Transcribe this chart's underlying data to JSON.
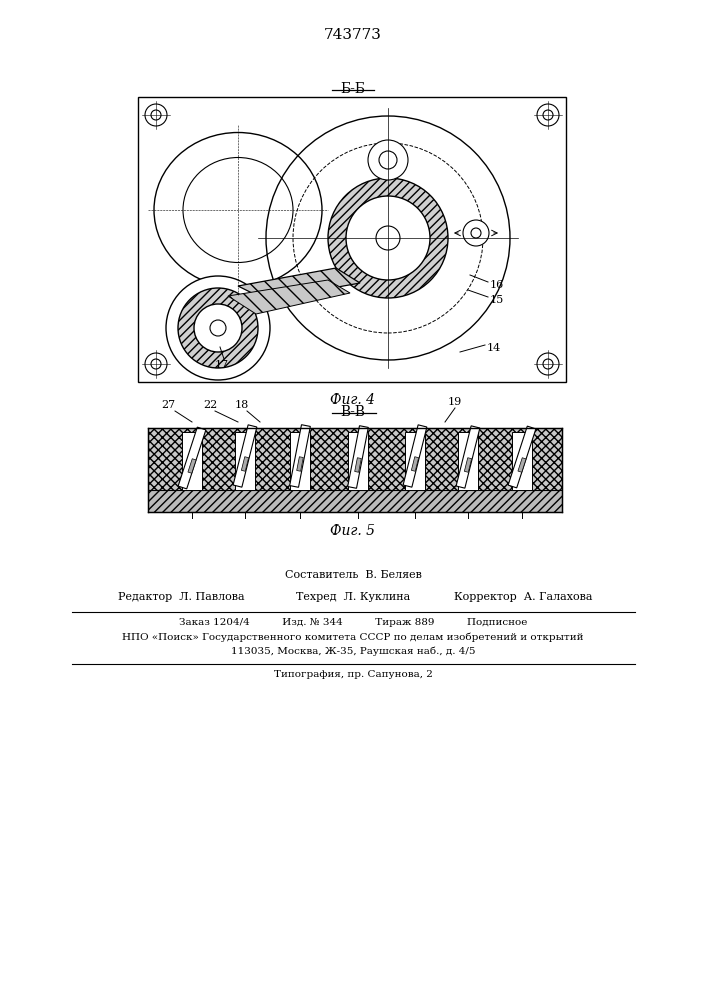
{
  "patent_number": "743773",
  "fig4_label": "Б-Б",
  "fig4_caption": "Фиг. 4",
  "fig5_label": "В-В",
  "fig5_caption": "Фиг. 5",
  "footer_composer": "Составитель  В. Беляев",
  "footer_editor": "Редактор  Л. Павлова",
  "footer_techred": "Техред  Л. Куклина",
  "footer_corrector": "Корректор  А. Галахова",
  "footer_line1": "Заказ 1204/4          Изд. № 344          Тираж 889          Подписное",
  "footer_line2": "НПО «Поиск» Государственного комитета СССР по делам изобретений и открытий",
  "footer_line3": "113035, Москва, Ж-35, Раушская наб., д. 4/5",
  "footer_line4": "Типография, пр. Сапунова, 2",
  "bg_color": "#ffffff"
}
